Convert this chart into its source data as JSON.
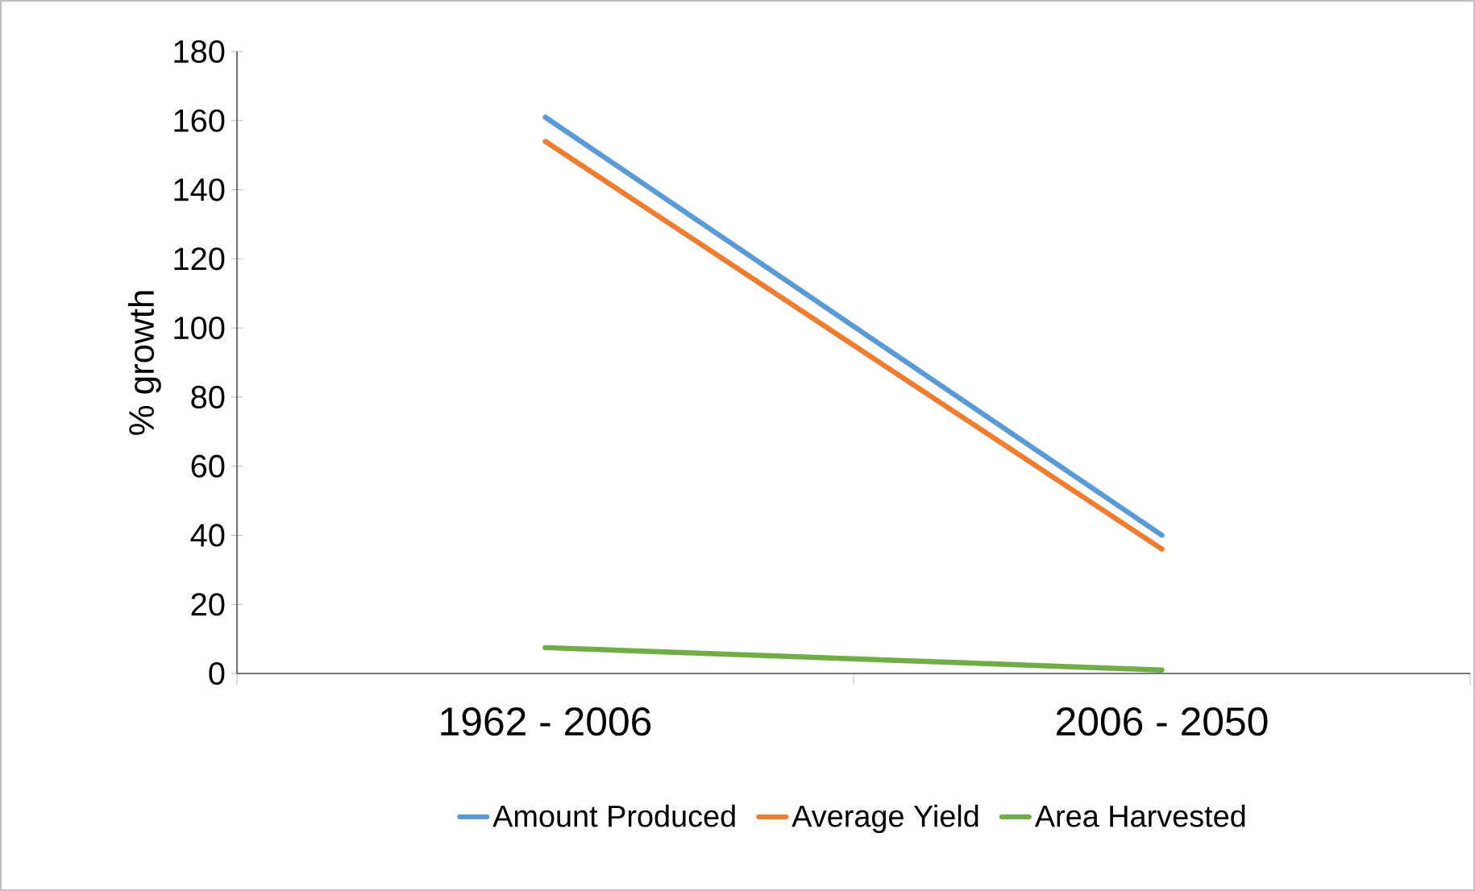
{
  "chart_data": {
    "type": "line",
    "ylabel": "% growth",
    "categories": [
      "1962 - 2006",
      "2006 - 2050"
    ],
    "series": [
      {
        "name": "Amount Produced",
        "color": "#5b9bd5",
        "values": [
          161,
          40
        ]
      },
      {
        "name": "Average Yield",
        "color": "#ed7d31",
        "values": [
          154,
          36
        ]
      },
      {
        "name": "Area Harvested",
        "color": "#70ad47",
        "values": [
          7.5,
          1
        ]
      }
    ],
    "ylim": [
      0,
      180
    ],
    "yticks": [
      0,
      20,
      40,
      60,
      80,
      100,
      120,
      140,
      160,
      180
    ],
    "legend": "bottom"
  }
}
